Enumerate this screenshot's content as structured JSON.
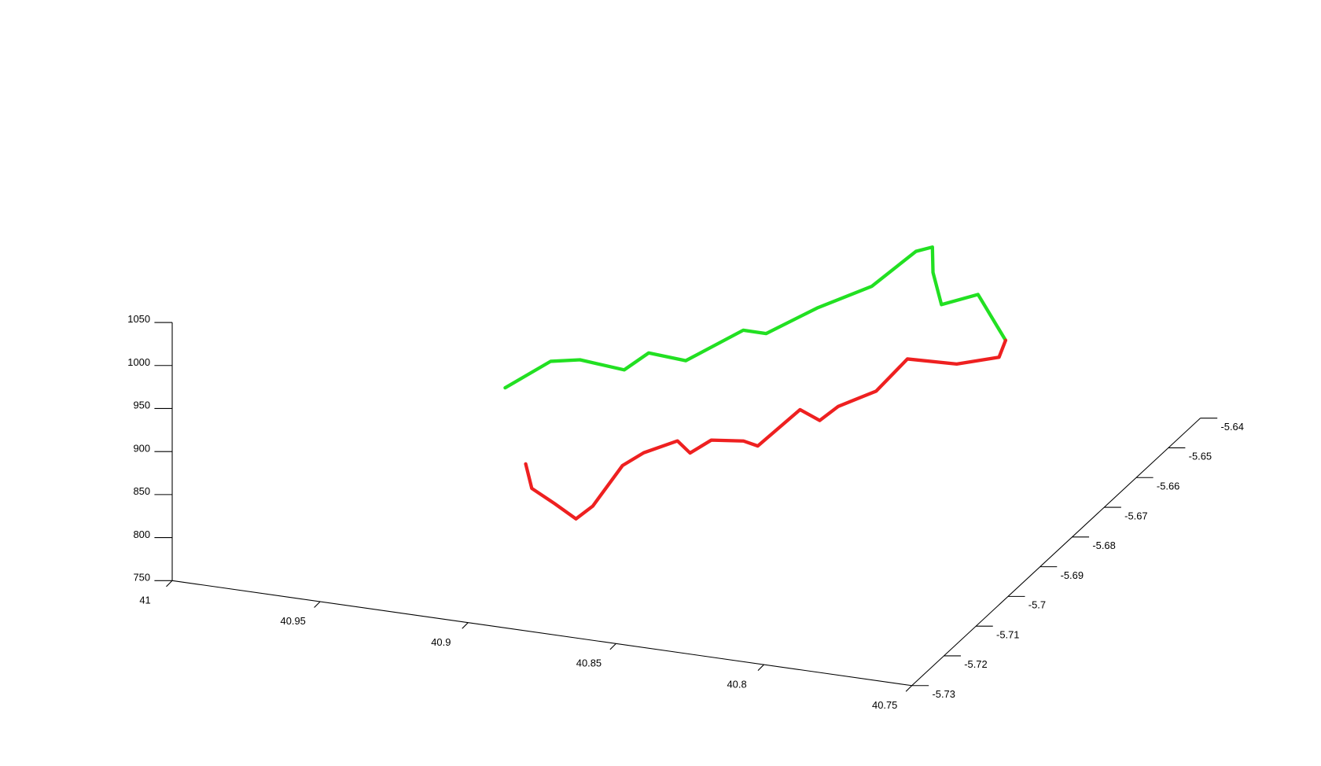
{
  "chart_data": {
    "type": "line3d",
    "xlim": [
      40.75,
      41
    ],
    "xticks": [
      40.75,
      40.8,
      40.85,
      40.9,
      40.95,
      41
    ],
    "ylim": [
      -5.73,
      -5.64
    ],
    "yticks": [
      -5.73,
      -5.72,
      -5.71,
      -5.7,
      -5.69,
      -5.68,
      -5.67,
      -5.66,
      -5.65,
      -5.64
    ],
    "zlim": [
      750,
      1050
    ],
    "zticks": [
      750,
      800,
      850,
      900,
      950,
      1000,
      1050
    ],
    "series": [
      {
        "color": "#22e022",
        "x": [
          40.928,
          40.9176,
          40.9081,
          40.8947,
          40.8888,
          40.8782,
          40.8642,
          40.8578,
          40.8441,
          40.8295,
          40.8208,
          40.816,
          40.8146,
          40.8101,
          40.7985,
          40.7868
        ],
        "y": [
          -5.6926,
          -5.688,
          -5.6876,
          -5.6862,
          -5.684,
          -5.6822,
          -5.6772,
          -5.676,
          -5.6727,
          -5.6691,
          -5.6634,
          -5.6627,
          -5.6638,
          -5.6653,
          -5.6646,
          -5.6668
        ],
        "z": [
          880,
          900,
          905,
          895,
          910,
          900,
          925,
          920,
          945,
          965,
          990,
          995,
          970,
          940,
          955,
          915
        ]
      },
      {
        "color": "#ee2020",
        "x": [
          40.7868,
          40.7861,
          40.795,
          40.8097,
          40.8155,
          40.8245,
          40.8282,
          40.8333,
          40.8451,
          40.8495,
          40.8592,
          40.8641,
          40.8689,
          40.8791,
          40.884,
          40.8867,
          40.8903,
          40.8973,
          40.9061,
          40.9088
        ],
        "y": [
          -5.6668,
          -5.6695,
          -5.6745,
          -5.6763,
          -5.6807,
          -5.6842,
          -5.6866,
          -5.688,
          -5.6903,
          -5.6907,
          -5.6918,
          -5.6939,
          -5.6934,
          -5.6945,
          -5.6966,
          -5.7034,
          -5.7053,
          -5.7055,
          -5.7045,
          -5.7039
        ],
        "z": [
          915,
          905,
          910,
          915,
          890,
          880,
          870,
          885,
          845,
          850,
          850,
          840,
          850,
          835,
          825,
          800,
          790,
          805,
          815,
          840
        ]
      }
    ]
  }
}
